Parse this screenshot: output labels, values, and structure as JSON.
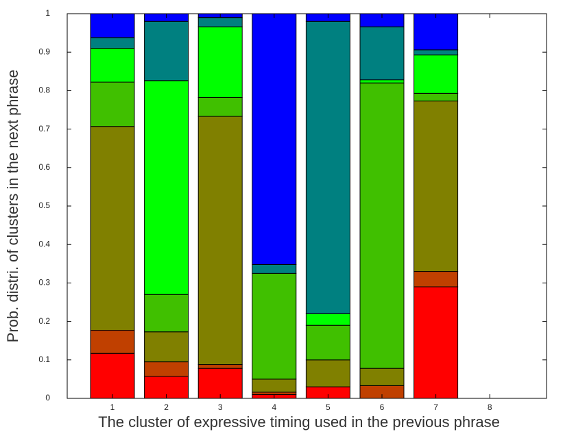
{
  "chart_data": {
    "type": "stacked-bar",
    "x_label": "The cluster of expressive timing used in the previous phrase",
    "y_label": "Prob. distri. of clusters in the next phrase",
    "categories": [
      "1",
      "2",
      "3",
      "4",
      "5",
      "6",
      "7",
      "8"
    ],
    "series": [
      {
        "color": "#ff0000",
        "values": [
          0.117,
          0.057,
          0.078,
          0.01,
          0.03,
          0,
          0.29,
          0
        ]
      },
      {
        "color": "#c04000",
        "values": [
          0.06,
          0.038,
          0.01,
          0.006,
          0,
          0.033,
          0.04,
          0
        ]
      },
      {
        "color": "#808000",
        "values": [
          0.53,
          0.078,
          0.645,
          0.034,
          0.07,
          0.045,
          0.443,
          0
        ]
      },
      {
        "color": "#40c000",
        "values": [
          0.115,
          0.097,
          0.049,
          0.275,
          0.09,
          0.742,
          0.02,
          0
        ]
      },
      {
        "color": "#00ff00",
        "values": [
          0.088,
          0.556,
          0.184,
          0,
          0.03,
          0.008,
          0.1,
          0
        ]
      },
      {
        "color": "#008080",
        "values": [
          0.028,
          0.154,
          0.024,
          0.023,
          0.76,
          0.138,
          0.013,
          0
        ]
      },
      {
        "color": "#0000ff",
        "values": [
          0.062,
          0.02,
          0.01,
          0.652,
          0.02,
          0.034,
          0.094,
          0
        ]
      }
    ],
    "ylim": [
      0,
      1
    ],
    "yticks": [
      0,
      0.1,
      0.2,
      0.3,
      0.4,
      0.5,
      0.6,
      0.7,
      0.8,
      0.9,
      1
    ],
    "grid": false
  }
}
